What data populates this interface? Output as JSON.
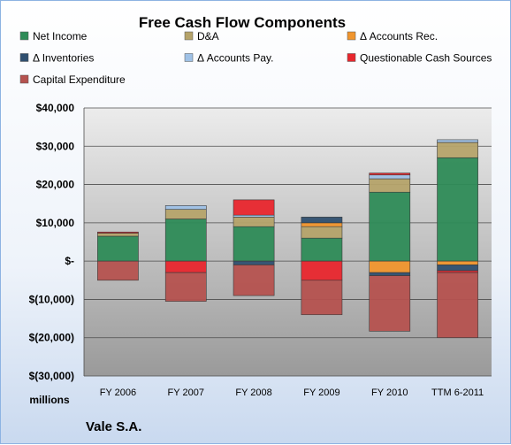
{
  "company": "Vale S.A.",
  "chart_data": {
    "type": "bar",
    "stacked": true,
    "title": "Free Cash Flow Components",
    "unit_label": "millions",
    "categories": [
      "FY 2006",
      "FY 2007",
      "FY 2008",
      "FY 2009",
      "FY 2010",
      "TTM 6-2011"
    ],
    "y_ticks": [
      "$40,000",
      "$30,000",
      "$20,000",
      "$10,000",
      "$-",
      "$(10,000)",
      "$(20,000)",
      "$(30,000)"
    ],
    "ylim": [
      -30000,
      40000
    ],
    "grid": true,
    "legend_position": "top",
    "series": [
      {
        "name": "Net Income",
        "color": "#2e8b57",
        "values": [
          6500,
          11000,
          9000,
          6000,
          18000,
          27000
        ]
      },
      {
        "name": "D&A",
        "color": "#b5a36a",
        "values": [
          800,
          2500,
          2500,
          3000,
          3500,
          4000
        ]
      },
      {
        "name": "Δ Accounts Rec.",
        "color": "#f0952d",
        "values": [
          0,
          0,
          0,
          1000,
          -3000,
          -1000
        ]
      },
      {
        "name": "Δ Inventories",
        "color": "#2f4f6f",
        "values": [
          0,
          0,
          -1000,
          1500,
          -800,
          -1500
        ]
      },
      {
        "name": "Δ Accounts Pay.",
        "color": "#9fc1e6",
        "values": [
          0,
          1000,
          500,
          0,
          1000,
          700
        ]
      },
      {
        "name": "Questionable Cash Sources",
        "color": "#e8262d",
        "values": [
          300,
          -3000,
          4000,
          -5000,
          500,
          -500
        ]
      },
      {
        "name": "Capital Expenditure",
        "color": "#b5524f",
        "values": [
          -5000,
          -7500,
          -8000,
          -9000,
          -14500,
          -17000
        ]
      }
    ]
  }
}
